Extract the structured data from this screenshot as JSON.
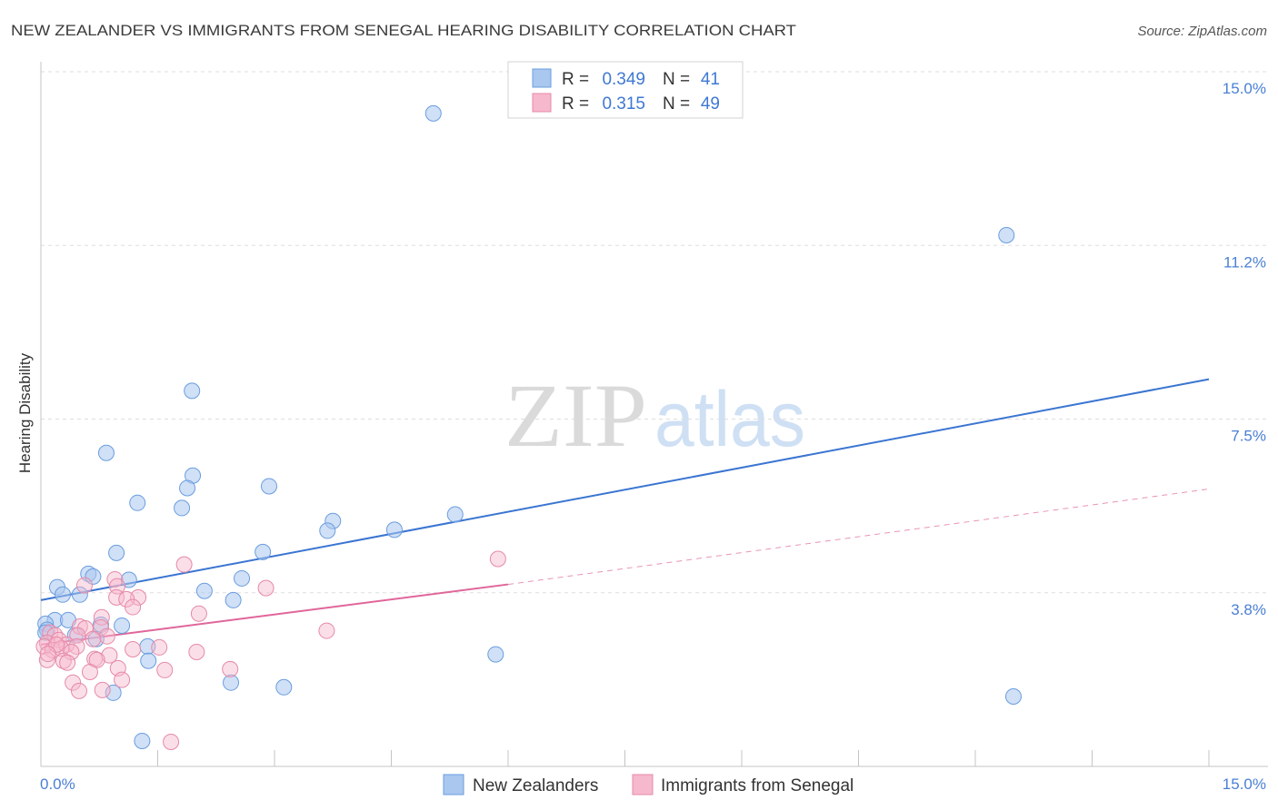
{
  "source": "Source: ZipAtlas.com",
  "watermark": {
    "zip": "ZIP",
    "atlas": "atlas"
  },
  "legend": {
    "r_label": "R =",
    "n_label": "N ="
  },
  "chart_data": {
    "type": "scatter",
    "title": "NEW ZEALANDER VS IMMIGRANTS FROM SENEGAL HEARING DISABILITY CORRELATION CHART",
    "ylabel": "Hearing Disability",
    "xlim": [
      0,
      15
    ],
    "ylim": [
      0,
      15
    ],
    "grid": true,
    "legend_position": "bottom",
    "x_ticks": [
      1.5,
      3,
      4.5,
      6,
      7.5,
      9,
      10.5,
      12,
      13.5,
      15
    ],
    "x_tick_labels": [
      {
        "value": 0,
        "label": "0.0%"
      },
      {
        "value": 15,
        "label": "15.0%"
      }
    ],
    "y_ticks": [
      {
        "value": 15,
        "label": "15.0%"
      },
      {
        "value": 11.25,
        "label": "11.2%"
      },
      {
        "value": 7.5,
        "label": "7.5%"
      },
      {
        "value": 3.75,
        "label": "3.8%"
      }
    ],
    "series": [
      {
        "name": "New Zealanders",
        "r": "0.349",
        "n": "41",
        "colors": {
          "marker_fill": "#a9c7ef",
          "marker_stroke": "#6a9ddf",
          "line": "#3a75d1"
        },
        "points": [
          [
            5.04,
            14.1
          ],
          [
            12.4,
            11.47
          ],
          [
            1.94,
            8.11
          ],
          [
            0.84,
            6.77
          ],
          [
            1.95,
            6.28
          ],
          [
            1.88,
            6.01
          ],
          [
            2.93,
            6.05
          ],
          [
            1.24,
            5.69
          ],
          [
            1.81,
            5.58
          ],
          [
            5.32,
            5.44
          ],
          [
            3.75,
            5.3
          ],
          [
            3.68,
            5.09
          ],
          [
            4.54,
            5.11
          ],
          [
            0.97,
            4.61
          ],
          [
            2.85,
            4.63
          ],
          [
            0.61,
            4.16
          ],
          [
            0.67,
            4.1
          ],
          [
            2.58,
            4.06
          ],
          [
            1.13,
            4.03
          ],
          [
            0.21,
            3.87
          ],
          [
            2.1,
            3.79
          ],
          [
            0.28,
            3.71
          ],
          [
            0.5,
            3.71
          ],
          [
            2.47,
            3.59
          ],
          [
            0.18,
            3.16
          ],
          [
            0.35,
            3.16
          ],
          [
            0.06,
            3.08
          ],
          [
            1.04,
            3.04
          ],
          [
            0.77,
            3.06
          ],
          [
            0.08,
            2.95
          ],
          [
            0.44,
            2.83
          ],
          [
            0.71,
            2.75
          ],
          [
            1.37,
            2.59
          ],
          [
            5.84,
            2.42
          ],
          [
            1.38,
            2.28
          ],
          [
            2.44,
            1.81
          ],
          [
            3.12,
            1.71
          ],
          [
            0.93,
            1.59
          ],
          [
            12.49,
            1.51
          ],
          [
            1.3,
            0.55
          ],
          [
            0.06,
            2.89
          ]
        ],
        "trend": {
          "fit": [
            [
              0,
              3.59
            ],
            [
              15,
              8.36
            ]
          ]
        }
      },
      {
        "name": "Immigrants from Senegal",
        "r": "0.315",
        "n": "49",
        "colors": {
          "marker_fill": "#f6b8cc",
          "marker_stroke": "#e58aa9",
          "line": "#e0669a"
        },
        "points": [
          [
            5.87,
            4.48
          ],
          [
            1.84,
            4.36
          ],
          [
            0.95,
            4.04
          ],
          [
            0.56,
            3.91
          ],
          [
            0.98,
            3.89
          ],
          [
            2.89,
            3.85
          ],
          [
            1.25,
            3.65
          ],
          [
            0.97,
            3.65
          ],
          [
            1.1,
            3.61
          ],
          [
            1.18,
            3.44
          ],
          [
            2.03,
            3.3
          ],
          [
            0.78,
            3.22
          ],
          [
            0.5,
            3.02
          ],
          [
            0.57,
            2.98
          ],
          [
            0.77,
            3.0
          ],
          [
            3.67,
            2.93
          ],
          [
            0.12,
            2.89
          ],
          [
            0.18,
            2.83
          ],
          [
            0.47,
            2.83
          ],
          [
            0.85,
            2.81
          ],
          [
            0.23,
            2.73
          ],
          [
            0.08,
            2.67
          ],
          [
            0.33,
            2.63
          ],
          [
            0.46,
            2.59
          ],
          [
            0.67,
            2.75
          ],
          [
            0.04,
            2.59
          ],
          [
            0.15,
            2.51
          ],
          [
            0.26,
            2.55
          ],
          [
            1.18,
            2.53
          ],
          [
            1.52,
            2.57
          ],
          [
            0.39,
            2.47
          ],
          [
            2.0,
            2.47
          ],
          [
            0.88,
            2.4
          ],
          [
            0.69,
            2.32
          ],
          [
            0.72,
            2.3
          ],
          [
            0.08,
            2.3
          ],
          [
            0.29,
            2.28
          ],
          [
            0.34,
            2.24
          ],
          [
            0.99,
            2.12
          ],
          [
            2.43,
            2.1
          ],
          [
            1.59,
            2.08
          ],
          [
            0.63,
            2.04
          ],
          [
            1.04,
            1.87
          ],
          [
            0.41,
            1.81
          ],
          [
            0.79,
            1.65
          ],
          [
            0.49,
            1.63
          ],
          [
            1.67,
            0.53
          ],
          [
            0.2,
            2.63
          ],
          [
            0.09,
            2.43
          ]
        ],
        "trend": {
          "fit": [
            [
              0,
              2.63
            ],
            [
              6.0,
              3.93
            ]
          ],
          "extrapolated": [
            [
              6.0,
              3.93
            ],
            [
              15,
              5.99
            ]
          ]
        }
      }
    ]
  }
}
